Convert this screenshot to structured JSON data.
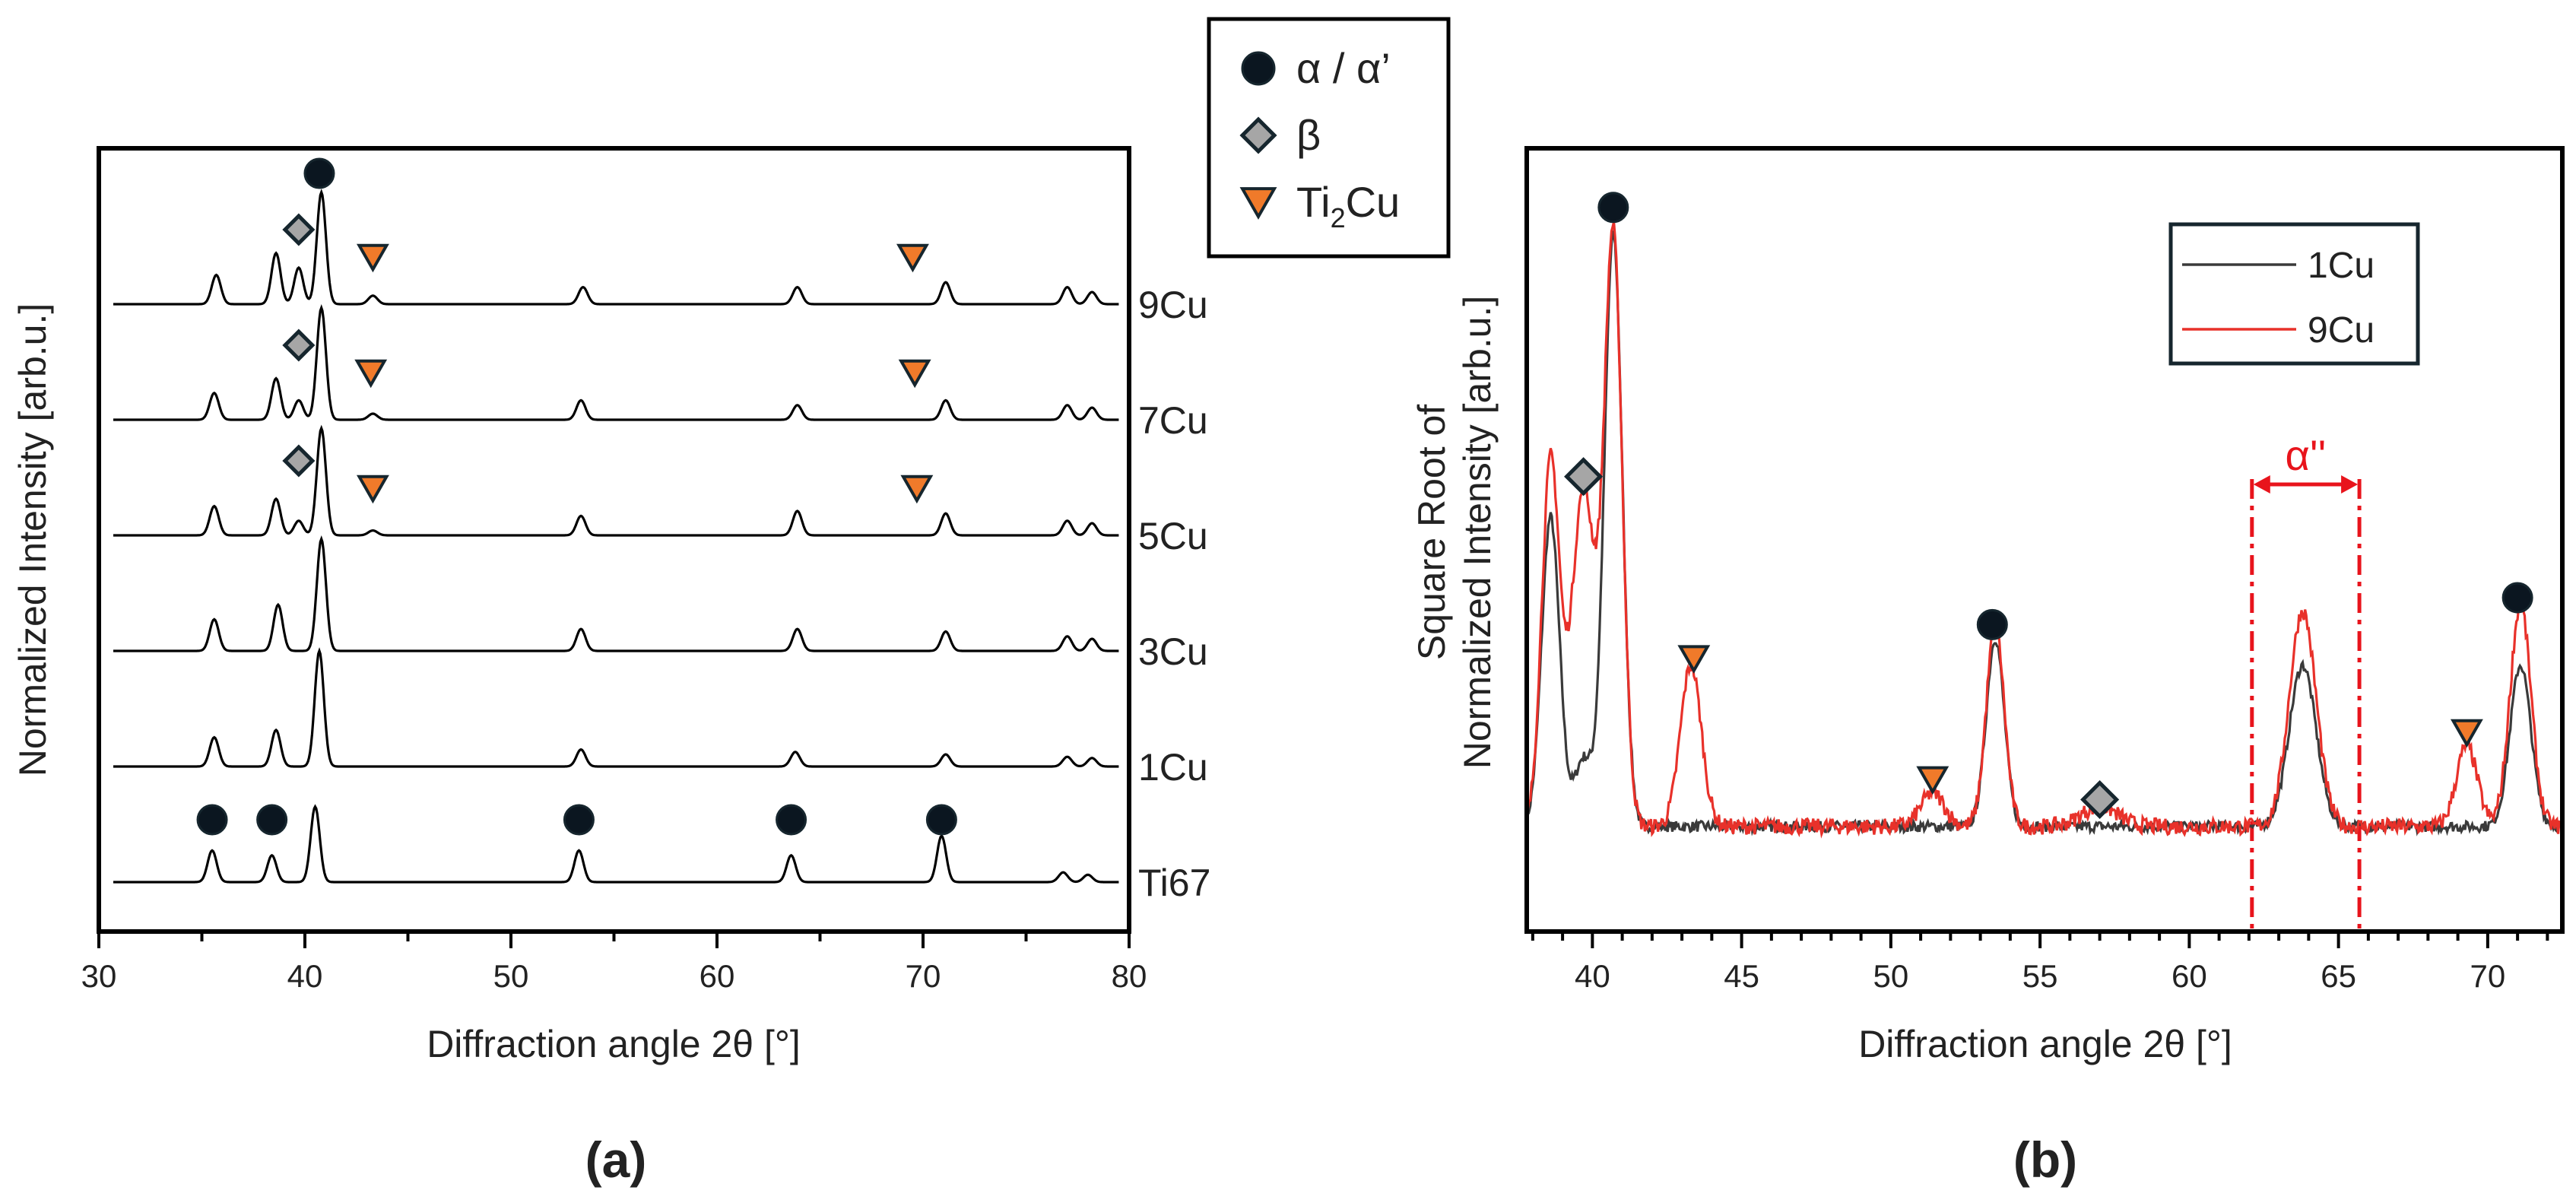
{
  "legend_symbols": {
    "items": [
      {
        "marker": "circle",
        "label_parts": [
          {
            "t": "α / α’"
          }
        ]
      },
      {
        "marker": "diamond",
        "label_parts": [
          {
            "t": "β"
          }
        ]
      },
      {
        "marker": "triangle-down",
        "label_parts": [
          {
            "t": "Ti"
          },
          {
            "t": "2",
            "sub": true
          },
          {
            "t": "Cu"
          }
        ]
      }
    ],
    "placement": "top-center"
  },
  "colors": {
    "alpha": "#0b1620",
    "beta": "#a6a6a6",
    "ti2cu": "#f07a2a",
    "marker_outline": "#16262e",
    "cu1": "#3a3a3a",
    "cu9": "#e8312a",
    "alpha2_annotation": "#e8141c",
    "axis": "#000000"
  },
  "chart_data": [
    {
      "panel_label": "(a)",
      "type": "line",
      "xlabel": "Diffraction angle 2θ [°]",
      "ylabel": "Normalized Intensity [arb.u.]",
      "xlim": [
        30,
        80
      ],
      "xticks": [
        30,
        40,
        50,
        60,
        70,
        80
      ],
      "grid": false,
      "series": [
        {
          "name": "Ti67",
          "peaks": [
            [
              35.5,
              0.26
            ],
            [
              38.4,
              0.22
            ],
            [
              40.5,
              0.62
            ],
            [
              53.3,
              0.26
            ],
            [
              63.6,
              0.22
            ],
            [
              70.9,
              0.38
            ],
            [
              76.8,
              0.08
            ],
            [
              78.0,
              0.06
            ]
          ]
        },
        {
          "name": "1Cu",
          "peaks": [
            [
              35.6,
              0.24
            ],
            [
              38.6,
              0.3
            ],
            [
              40.7,
              0.95
            ],
            [
              53.4,
              0.14
            ],
            [
              63.8,
              0.12
            ],
            [
              71.1,
              0.1
            ],
            [
              77.0,
              0.08
            ],
            [
              78.2,
              0.07
            ]
          ]
        },
        {
          "name": "3Cu",
          "peaks": [
            [
              35.6,
              0.26
            ],
            [
              38.7,
              0.38
            ],
            [
              40.8,
              0.92
            ],
            [
              53.4,
              0.18
            ],
            [
              63.9,
              0.18
            ],
            [
              71.1,
              0.16
            ],
            [
              77.0,
              0.12
            ],
            [
              78.2,
              0.1
            ]
          ]
        },
        {
          "name": "5Cu",
          "peaks": [
            [
              35.6,
              0.24
            ],
            [
              38.6,
              0.3
            ],
            [
              39.7,
              0.12
            ],
            [
              40.8,
              0.88
            ],
            [
              43.3,
              0.04
            ],
            [
              53.4,
              0.16
            ],
            [
              63.9,
              0.2
            ],
            [
              71.1,
              0.18
            ],
            [
              77.0,
              0.12
            ],
            [
              78.2,
              0.1
            ]
          ]
        },
        {
          "name": "7Cu",
          "peaks": [
            [
              35.6,
              0.22
            ],
            [
              38.6,
              0.34
            ],
            [
              39.7,
              0.16
            ],
            [
              40.8,
              0.92
            ],
            [
              43.3,
              0.05
            ],
            [
              53.4,
              0.16
            ],
            [
              63.9,
              0.12
            ],
            [
              71.1,
              0.16
            ],
            [
              77.0,
              0.12
            ],
            [
              78.2,
              0.1
            ]
          ]
        },
        {
          "name": "9Cu",
          "peaks": [
            [
              35.7,
              0.24
            ],
            [
              38.6,
              0.42
            ],
            [
              39.7,
              0.3
            ],
            [
              40.8,
              0.92
            ],
            [
              43.3,
              0.07
            ],
            [
              53.5,
              0.14
            ],
            [
              63.9,
              0.14
            ],
            [
              71.1,
              0.18
            ],
            [
              77.0,
              0.14
            ],
            [
              78.2,
              0.1
            ]
          ]
        }
      ],
      "markers": {
        "alpha_on_Ti67": [
          35.5,
          38.4,
          53.3,
          63.6,
          70.9
        ],
        "alpha_on_9Cu": [
          40.7
        ],
        "beta_on": [
          {
            "series": "9Cu",
            "x": 39.7
          },
          {
            "series": "7Cu",
            "x": 39.7
          },
          {
            "series": "5Cu",
            "x": 39.7
          }
        ],
        "ti2cu_on": [
          {
            "series": "9Cu",
            "x": 43.3
          },
          {
            "series": "9Cu",
            "x": 69.5
          },
          {
            "series": "7Cu",
            "x": 43.2
          },
          {
            "series": "7Cu",
            "x": 69.6
          },
          {
            "series": "5Cu",
            "x": 43.3
          },
          {
            "series": "5Cu",
            "x": 69.7
          }
        ]
      }
    },
    {
      "panel_label": "(b)",
      "type": "line",
      "xlabel": "Diffraction angle 2θ [°]",
      "ylabel_lines": [
        "Square Root of",
        "Normalized Intensity [arb.u.]"
      ],
      "xlim": [
        37.8,
        72.5
      ],
      "xticks": [
        40,
        45,
        50,
        55,
        60,
        65,
        70
      ],
      "grid": false,
      "legend": {
        "placement": "top-right"
      },
      "series": [
        {
          "name": "1Cu",
          "color_key": "cu1",
          "baseline": 0.06,
          "noise": 0.008,
          "peaks": [
            [
              38.6,
              0.46,
              0.3
            ],
            [
              39.7,
              0.1,
              0.3
            ],
            [
              40.7,
              0.88,
              0.3
            ],
            [
              53.5,
              0.28,
              0.3
            ],
            [
              63.8,
              0.24,
              0.45
            ],
            [
              71.1,
              0.24,
              0.35
            ]
          ]
        },
        {
          "name": "9Cu",
          "color_key": "cu9",
          "baseline": 0.06,
          "noise": 0.012,
          "peaks": [
            [
              38.6,
              0.54,
              0.3
            ],
            [
              39.7,
              0.5,
              0.4
            ],
            [
              40.7,
              0.87,
              0.3
            ],
            [
              43.3,
              0.24,
              0.35
            ],
            [
              51.4,
              0.05,
              0.4
            ],
            [
              53.5,
              0.3,
              0.3
            ],
            [
              57.0,
              0.03,
              0.6
            ],
            [
              63.8,
              0.32,
              0.45
            ],
            [
              69.3,
              0.12,
              0.35
            ],
            [
              71.1,
              0.33,
              0.35
            ]
          ]
        }
      ],
      "markers": {
        "alpha": [
          {
            "x": 40.7,
            "y": 0.98
          },
          {
            "x": 53.4,
            "y": 0.36
          },
          {
            "x": 71.0,
            "y": 0.4
          }
        ],
        "beta": [
          {
            "x": 39.7,
            "y": 0.58
          },
          {
            "x": 57.0,
            "y": 0.1
          }
        ],
        "ti2cu": [
          {
            "x": 43.4,
            "y": 0.31
          },
          {
            "x": 51.4,
            "y": 0.13
          },
          {
            "x": 69.3,
            "y": 0.2
          }
        ]
      },
      "annotation": {
        "label": "α''",
        "x_range": [
          62.1,
          65.7
        ]
      }
    }
  ]
}
